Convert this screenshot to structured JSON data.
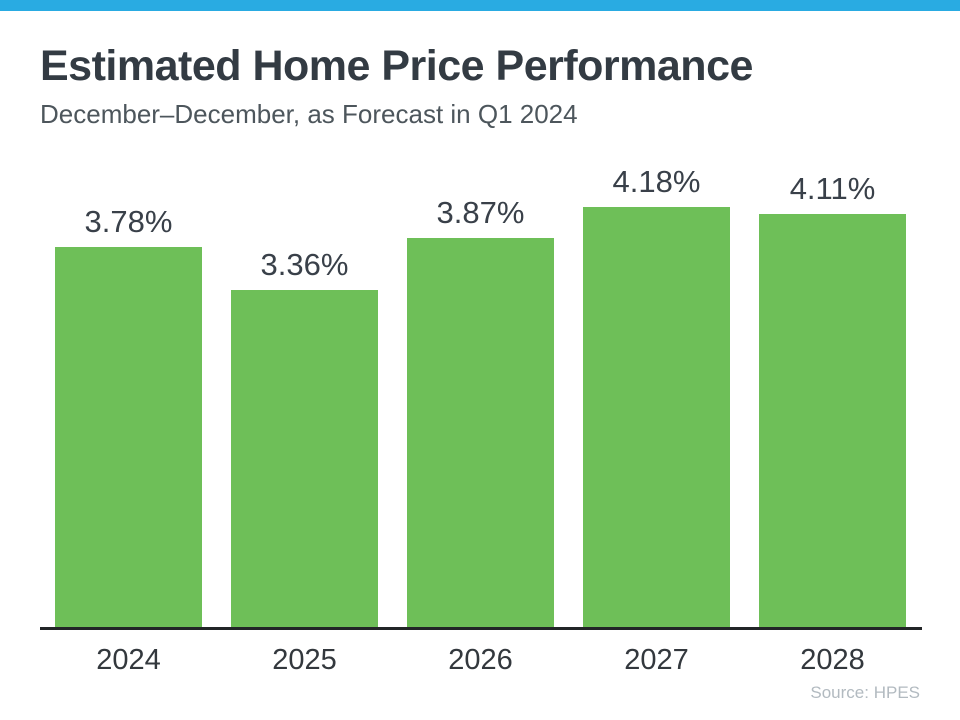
{
  "header": {
    "title": "Estimated Home Price Performance",
    "subtitle": "December–December, as Forecast in Q1 2024"
  },
  "footer": {
    "source": "Source: HPES"
  },
  "theme": {
    "accent_strip_color": "#29abe2",
    "bar_color": "#6ebf58",
    "title_color": "#333b43",
    "subtitle_color": "#4d565c",
    "axis_color": "#222527",
    "source_color": "#b2bac0"
  },
  "chart_data": {
    "type": "bar",
    "title": "Estimated Home Price Performance",
    "subtitle": "December–December, as Forecast in Q1 2024",
    "categories": [
      "2024",
      "2025",
      "2026",
      "2027",
      "2028"
    ],
    "values": [
      3.78,
      3.36,
      3.87,
      4.18,
      4.11
    ],
    "labels": [
      "3.78%",
      "3.36%",
      "3.87%",
      "4.18%",
      "4.11%"
    ],
    "xlabel": "",
    "ylabel": "",
    "ylim": [
      0,
      4.85
    ],
    "grid": false,
    "legend": false,
    "data_labels_position": "above-bars",
    "source": "Source: HPES"
  }
}
